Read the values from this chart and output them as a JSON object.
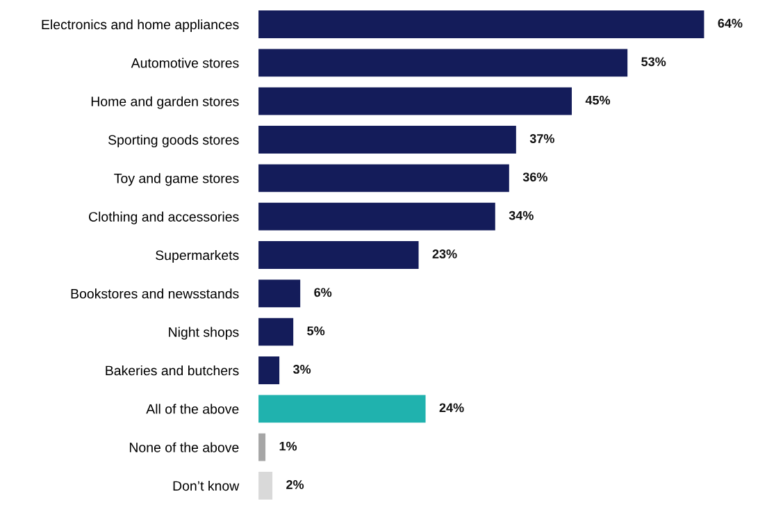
{
  "chart_data": {
    "type": "bar",
    "orientation": "horizontal",
    "categories": [
      "Electronics and home appliances",
      "Automotive stores",
      "Home and garden stores",
      "Sporting goods stores",
      "Toy and game stores",
      "Clothing and accessories",
      "Supermarkets",
      "Bookstores and newsstands",
      "Night shops",
      "Bakeries and butchers",
      "All of the above",
      "None of the above",
      "Don’t know"
    ],
    "values": [
      64,
      53,
      45,
      37,
      36,
      34,
      23,
      6,
      5,
      3,
      24,
      1,
      2
    ],
    "colors": [
      "#141c5a",
      "#141c5a",
      "#141c5a",
      "#141c5a",
      "#141c5a",
      "#141c5a",
      "#141c5a",
      "#141c5a",
      "#141c5a",
      "#141c5a",
      "#20b2ae",
      "#a6a6a6",
      "#d9d9d9"
    ],
    "value_labels": [
      "64%",
      "53%",
      "45%",
      "37%",
      "36%",
      "34%",
      "23%",
      "6%",
      "5%",
      "3%",
      "24%",
      "1%",
      "2%"
    ],
    "grid": false,
    "legend": false
  }
}
